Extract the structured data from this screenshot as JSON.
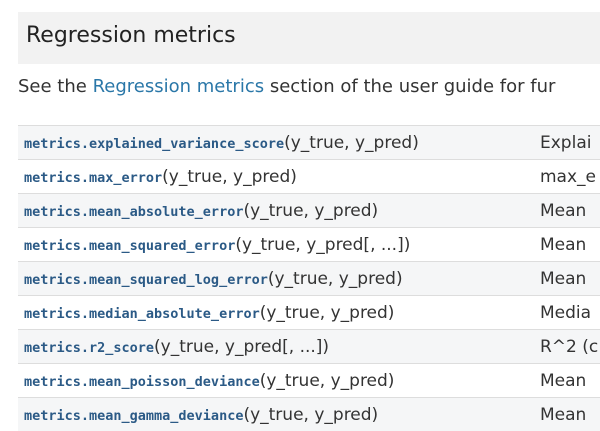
{
  "header": {
    "title": "Regression metrics"
  },
  "intro": {
    "before": "See the",
    "link": "Regression metrics",
    "after": "section of the user guide for fur"
  },
  "table": {
    "rows": [
      [
        "metrics.explained_variance_score",
        "(y_true, y_pred)",
        "Explai"
      ],
      [
        "metrics.max_error",
        "(y_true, y_pred)",
        "max_e"
      ],
      [
        "metrics.mean_absolute_error",
        "(y_true, y_pred)",
        "Mean"
      ],
      [
        "metrics.mean_squared_error",
        "(y_true, y_pred[, ...])",
        "Mean"
      ],
      [
        "metrics.mean_squared_log_error",
        "(y_true, y_pred)",
        "Mean"
      ],
      [
        "metrics.median_absolute_error",
        "(y_true, y_pred)",
        "Media"
      ],
      [
        "metrics.r2_score",
        "(y_true, y_pred[, ...])",
        "R^2 (c"
      ],
      [
        "metrics.mean_poisson_deviance",
        "(y_true, y_pred)",
        "Mean"
      ],
      [
        "metrics.mean_gamma_deviance",
        "(y_true, y_pred)",
        "Mean"
      ]
    ]
  }
}
